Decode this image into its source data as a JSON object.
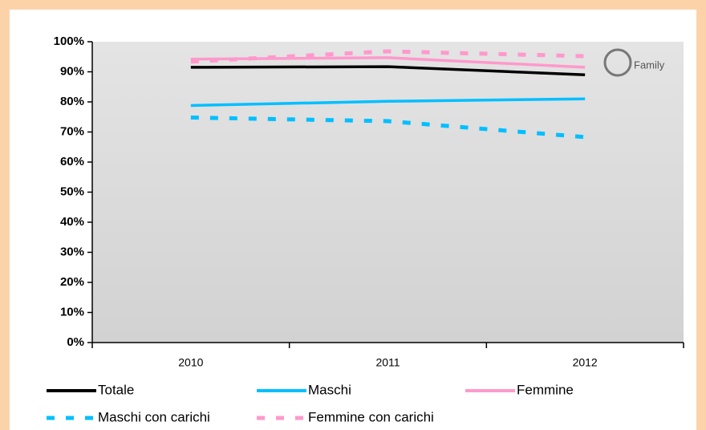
{
  "chart_data": {
    "type": "line",
    "logo_text": "Family",
    "categories": [
      "2010",
      "2011",
      "2012"
    ],
    "series": [
      {
        "name": "Totale",
        "color": "#000000",
        "dash": false,
        "values": [
          91.5,
          91.7,
          89.0
        ]
      },
      {
        "name": "Maschi",
        "color": "#00bfff",
        "dash": false,
        "values": [
          78.8,
          80.2,
          81.0
        ]
      },
      {
        "name": "Femmine",
        "color": "#ff99cc",
        "dash": false,
        "values": [
          94.2,
          94.7,
          91.5
        ]
      },
      {
        "name": "Maschi con carichi",
        "color": "#00bfff",
        "dash": true,
        "values": [
          74.8,
          73.6,
          68.3
        ]
      },
      {
        "name": "Femmine con carichi",
        "color": "#ff99cc",
        "dash": true,
        "values": [
          93.4,
          96.8,
          95.2
        ]
      }
    ],
    "ylim": [
      0,
      100
    ],
    "yticks": [
      {
        "value": 0,
        "label": "0%"
      },
      {
        "value": 10,
        "label": "10%"
      },
      {
        "value": 20,
        "label": "20%"
      },
      {
        "value": 30,
        "label": "30%"
      },
      {
        "value": 40,
        "label": "40%"
      },
      {
        "value": 50,
        "label": "50%"
      },
      {
        "value": 60,
        "label": "60%"
      },
      {
        "value": 70,
        "label": "70%"
      },
      {
        "value": 80,
        "label": "80%"
      },
      {
        "value": 90,
        "label": "90%"
      },
      {
        "value": 100,
        "label": "100%"
      }
    ],
    "legend": "bottom"
  }
}
